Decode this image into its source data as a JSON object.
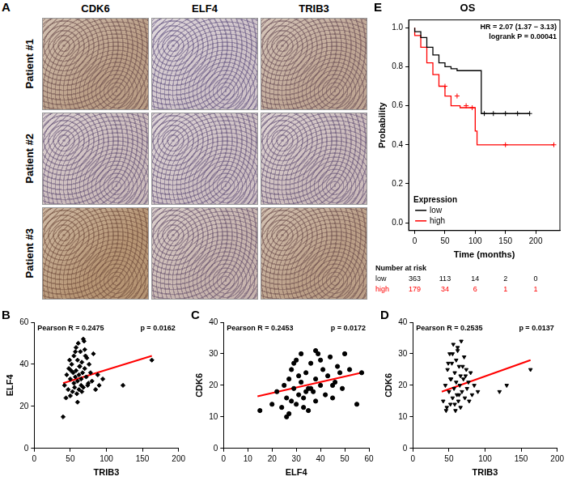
{
  "figure_panels": {
    "A": {
      "letter": "A",
      "columns": [
        "CDK6",
        "ELF4",
        "TRIB3"
      ],
      "rows": [
        "Patient #1",
        "Patient #2",
        "Patient #3"
      ]
    }
  },
  "chart_data": [
    {
      "letter": "B",
      "type": "scatter",
      "x_label": "TRIB3",
      "y_label": "ELF4",
      "x": [
        42,
        45,
        47,
        48,
        50,
        50,
        52,
        53,
        54,
        55,
        55,
        56,
        57,
        58,
        58,
        59,
        60,
        60,
        61,
        62,
        62,
        63,
        64,
        65,
        65,
        66,
        67,
        68,
        68,
        70,
        70,
        72,
        73,
        75,
        76,
        78,
        80,
        82,
        85,
        88,
        90,
        95,
        44,
        49,
        51,
        57,
        63,
        69,
        74,
        123,
        163,
        40,
        60,
        66,
        71
      ],
      "values": [
        30,
        35,
        28,
        38,
        25,
        33,
        40,
        27,
        36,
        31,
        44,
        29,
        34,
        37,
        48,
        26,
        32,
        42,
        50,
        35,
        28,
        39,
        46,
        33,
        30,
        41,
        36,
        52,
        29,
        38,
        47,
        34,
        43,
        31,
        40,
        36,
        32,
        45,
        28,
        35,
        30,
        33,
        24,
        42,
        37,
        46,
        39,
        51,
        30,
        30,
        42,
        15,
        22,
        27,
        44
      ],
      "color": "#000000",
      "marker": "diamond",
      "fit_line": {
        "x": [
          40,
          163
        ],
        "values": [
          31,
          44
        ],
        "color": "#ff0000"
      },
      "annotations": [
        "Pearson R = 0.2475",
        "p = 0.0162"
      ],
      "xlim": [
        0,
        200
      ],
      "xticks": [
        0,
        50,
        100,
        150,
        200
      ],
      "ylim": [
        0,
        60
      ],
      "yticks": [
        0,
        20,
        40,
        60
      ],
      "grid": false
    },
    {
      "letter": "C",
      "type": "scatter",
      "x_label": "ELF4",
      "y_label": "CDK6",
      "x": [
        15,
        20,
        22,
        24,
        25,
        26,
        27,
        28,
        28,
        29,
        30,
        30,
        31,
        32,
        32,
        33,
        34,
        35,
        35,
        36,
        37,
        38,
        38,
        39,
        40,
        41,
        42,
        43,
        44,
        45,
        46,
        47,
        48,
        50,
        52,
        55,
        57,
        27,
        29,
        33,
        36,
        40,
        31,
        34,
        26,
        45,
        49,
        38
      ],
      "values": [
        12,
        14,
        18,
        13,
        20,
        16,
        22,
        15,
        25,
        19,
        14,
        28,
        17,
        21,
        30,
        16,
        24,
        12,
        19,
        27,
        18,
        22,
        15,
        30,
        20,
        25,
        17,
        23,
        29,
        16,
        21,
        26,
        24,
        30,
        25,
        14,
        24,
        11,
        27,
        13,
        19,
        28,
        23,
        18,
        10,
        20,
        19,
        31
      ],
      "color": "#000000",
      "marker": "circle",
      "fit_line": {
        "x": [
          14,
          57
        ],
        "values": [
          16.5,
          24
        ],
        "color": "#ff0000"
      },
      "annotations": [
        "Pearson R = 0.2453",
        "p = 0.0172"
      ],
      "xlim": [
        0,
        60
      ],
      "xticks": [
        0,
        10,
        20,
        30,
        40,
        50,
        60
      ],
      "ylim": [
        0,
        40
      ],
      "yticks": [
        0,
        10,
        20,
        30,
        40
      ],
      "grid": false
    },
    {
      "letter": "D",
      "type": "scatter",
      "x_label": "TRIB3",
      "y_label": "CDK6",
      "x": [
        42,
        45,
        47,
        48,
        50,
        51,
        52,
        53,
        54,
        55,
        56,
        57,
        58,
        59,
        60,
        60,
        61,
        62,
        63,
        64,
        65,
        66,
        67,
        68,
        70,
        71,
        72,
        74,
        75,
        77,
        80,
        82,
        85,
        90,
        46,
        49,
        55,
        58,
        62,
        66,
        69,
        73,
        78,
        120,
        130,
        163,
        52,
        64
      ],
      "values": [
        15,
        20,
        13,
        25,
        18,
        30,
        14,
        22,
        27,
        16,
        33,
        19,
        24,
        12,
        28,
        21,
        17,
        31,
        15,
        26,
        20,
        23,
        34,
        18,
        22,
        29,
        16,
        25,
        19,
        21,
        24,
        17,
        20,
        18,
        12,
        27,
        30,
        14,
        32,
        13,
        26,
        23,
        15,
        18,
        20,
        25,
        22,
        17
      ],
      "color": "#000000",
      "marker": "triangle-down",
      "fit_line": {
        "x": [
          40,
          163
        ],
        "values": [
          18,
          28
        ],
        "color": "#ff0000"
      },
      "annotations": [
        "Pearson R = 0.2535",
        "p = 0.0137"
      ],
      "xlim": [
        0,
        200
      ],
      "xticks": [
        0,
        50,
        100,
        150,
        200
      ],
      "ylim": [
        0,
        40
      ],
      "yticks": [
        0,
        10,
        20,
        30,
        40
      ],
      "grid": false
    },
    {
      "letter": "E",
      "type": "survival",
      "title": "OS",
      "x_label": "Time (months)",
      "y_label": "Probability",
      "annotations": [
        "HR = 2.07 (1.37 − 3.13)",
        "logrank P = 0.00041"
      ],
      "legend": "bottom-left",
      "legend_title": "Expression",
      "series": [
        {
          "name": "low",
          "color": "#000000",
          "x": [
            0,
            10,
            20,
            30,
            40,
            50,
            60,
            70,
            80,
            110,
            112,
            190
          ],
          "values": [
            1.0,
            0.98,
            0.95,
            0.9,
            0.86,
            0.82,
            0.8,
            0.79,
            0.78,
            0.78,
            0.56,
            0.56
          ],
          "censored_x": [
            115,
            130,
            150,
            170,
            190
          ],
          "censored_values": [
            0.56,
            0.56,
            0.56,
            0.56,
            0.56
          ],
          "at_risk": [
            363,
            113,
            14,
            2,
            0
          ]
        },
        {
          "name": "high",
          "color": "#ff0000",
          "x": [
            0,
            10,
            20,
            30,
            40,
            50,
            60,
            75,
            100,
            103,
            108,
            230
          ],
          "values": [
            1.0,
            0.96,
            0.9,
            0.82,
            0.76,
            0.7,
            0.65,
            0.6,
            0.59,
            0.47,
            0.4,
            0.4
          ],
          "censored_x": [
            50,
            70,
            85,
            95,
            150,
            230
          ],
          "censored_values": [
            0.7,
            0.65,
            0.6,
            0.59,
            0.4,
            0.4
          ],
          "at_risk": [
            179,
            34,
            6,
            1,
            1
          ]
        }
      ],
      "at_risk_title": "Number at risk",
      "at_risk_times": [
        0,
        50,
        100,
        150,
        200
      ],
      "xlim": [
        -10,
        240
      ],
      "xticks": [
        0,
        50,
        100,
        150,
        200
      ],
      "ylim": [
        -0.04,
        1.04
      ],
      "yticks": [
        {
          "value": 0,
          "label": "0.0"
        },
        {
          "value": 0.2,
          "label": "0.2"
        },
        {
          "value": 0.4,
          "label": "0.4"
        },
        {
          "value": 0.6,
          "label": "0.6"
        },
        {
          "value": 0.8,
          "label": "0.8"
        },
        {
          "value": 1,
          "label": "1.0"
        }
      ],
      "grid": false
    }
  ]
}
